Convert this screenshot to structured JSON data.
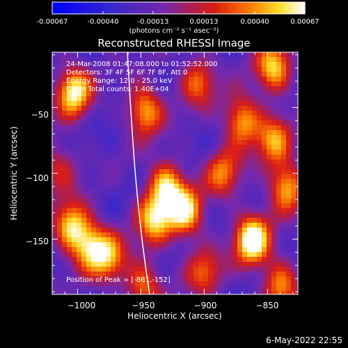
{
  "colorbar": {
    "ticks": [
      "-0.00067",
      "-0.00040",
      "-0.00013",
      "0.00013",
      "0.00040",
      "0.00067"
    ],
    "unit": "(photons cm⁻² s⁻¹ asec⁻²)"
  },
  "chart_data": {
    "type": "heatmap",
    "title": "Reconstructed RHESSI Image",
    "xlabel": "Heliocentric X (arcsec)",
    "ylabel": "Heliocentric Y (arcsec)",
    "xlim": [
      -1020,
      -826
    ],
    "ylim": [
      -192,
      -8
    ],
    "x_ticks": [
      "−1000",
      "−950",
      "−900",
      "−850"
    ],
    "y_ticks": [
      "−50",
      "−100",
      "−150"
    ],
    "colorbar_range": [
      -0.00067,
      0.00067
    ],
    "annotations": [
      "24-Mar-2008 01:47:08.000 to 01:52:52.000",
      "Detectors: 3F 4F 5F 6F 7F 8F, Att 0",
      "Energy Range: 12.0 - 25.0 keV",
      "Clean     Total counts: 1.40E+04"
    ],
    "peak_label": "Position of Peak = [-861,-152]",
    "peak_position": [
      -861,
      -152
    ],
    "bright_sources": [
      {
        "x": -862,
        "y": -151,
        "level": 1.0
      },
      {
        "x": -1003,
        "y": -38,
        "level": 0.85
      },
      {
        "x": -947,
        "y": -52,
        "level": 0.7
      },
      {
        "x": -930,
        "y": -110,
        "level": 0.75
      },
      {
        "x": -915,
        "y": -130,
        "level": 0.8
      },
      {
        "x": -940,
        "y": -135,
        "level": 0.7
      },
      {
        "x": -1005,
        "y": -140,
        "level": 0.75
      },
      {
        "x": -990,
        "y": -155,
        "level": 0.65
      },
      {
        "x": -975,
        "y": -165,
        "level": 0.6
      },
      {
        "x": -948,
        "y": -185,
        "level": 0.55
      },
      {
        "x": -900,
        "y": -175,
        "level": 0.5
      },
      {
        "x": -885,
        "y": -100,
        "level": 0.55
      },
      {
        "x": -870,
        "y": -60,
        "level": 0.7
      },
      {
        "x": -845,
        "y": -20,
        "level": 0.75
      },
      {
        "x": -845,
        "y": -75,
        "level": 0.6
      },
      {
        "x": -835,
        "y": -110,
        "level": 0.7
      },
      {
        "x": -840,
        "y": -185,
        "level": 0.6
      },
      {
        "x": -905,
        "y": -30,
        "level": 0.55
      },
      {
        "x": -1015,
        "y": -95,
        "level": 0.4
      }
    ]
  },
  "footer": {
    "date": "6-May-2022 22:55"
  }
}
